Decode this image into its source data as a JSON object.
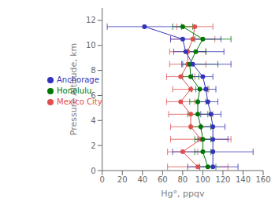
{
  "chart_data": {
    "type": "line",
    "title": "",
    "xlabel": "Hg°, ppqv",
    "ylabel": "Pressure Altitude, km",
    "xlim": [
      0,
      160
    ],
    "ylim": [
      0,
      13
    ],
    "xticks": [
      0,
      20,
      40,
      60,
      80,
      100,
      120,
      140,
      160
    ],
    "yticks": [
      0,
      2,
      4,
      6,
      8,
      10,
      12
    ],
    "grid": false,
    "legend": "left",
    "series": [
      {
        "name": "Mexico City",
        "color": "#e05050",
        "marker": "circle",
        "line_style": "solid",
        "x": [
          95,
          80,
          98,
          88,
          88,
          78,
          88,
          78,
          85,
          85,
          90,
          92
        ],
        "y": [
          0.3,
          1.5,
          2.5,
          3.5,
          4.5,
          5.5,
          6.5,
          7.5,
          8.5,
          9.5,
          10.5,
          11.5
        ],
        "xerr_lo": [
          30,
          15,
          30,
          20,
          22,
          14,
          18,
          14,
          18,
          18,
          22,
          18
        ],
        "xerr_hi": [
          30,
          15,
          30,
          20,
          22,
          14,
          18,
          14,
          18,
          18,
          22,
          18
        ]
      },
      {
        "name": "Honolulu",
        "color": "#007700",
        "marker": "circle",
        "line_style": "solid",
        "x": [
          105,
          100,
          100,
          98,
          95,
          95,
          97,
          88,
          87,
          93,
          100,
          80
        ],
        "y": [
          0.3,
          1.5,
          2.5,
          3.5,
          4.5,
          5.5,
          6.5,
          7.5,
          8.5,
          9.5,
          10.5,
          11.5
        ],
        "xerr_lo": [
          8,
          8,
          8,
          10,
          10,
          8,
          8,
          8,
          8,
          8,
          8,
          10
        ],
        "xerr_hi": [
          8,
          8,
          8,
          10,
          10,
          8,
          8,
          8,
          28,
          10,
          28,
          10
        ]
      },
      {
        "name": "Anchorage",
        "color": "#3333bb",
        "marker": "circle",
        "line_style": "solid",
        "x": [
          110,
          110,
          110,
          110,
          108,
          105,
          103,
          100,
          90,
          83,
          80,
          42
        ],
        "y": [
          0.3,
          1.5,
          2.5,
          3.5,
          4.5,
          5.5,
          6.5,
          7.5,
          8.5,
          9.5,
          10.5,
          11.5
        ],
        "xerr_lo": [
          25,
          40,
          15,
          12,
          10,
          10,
          10,
          10,
          10,
          12,
          12,
          37
        ],
        "xerr_hi": [
          25,
          40,
          15,
          12,
          10,
          10,
          10,
          10,
          38,
          38,
          38,
          37
        ]
      }
    ]
  }
}
